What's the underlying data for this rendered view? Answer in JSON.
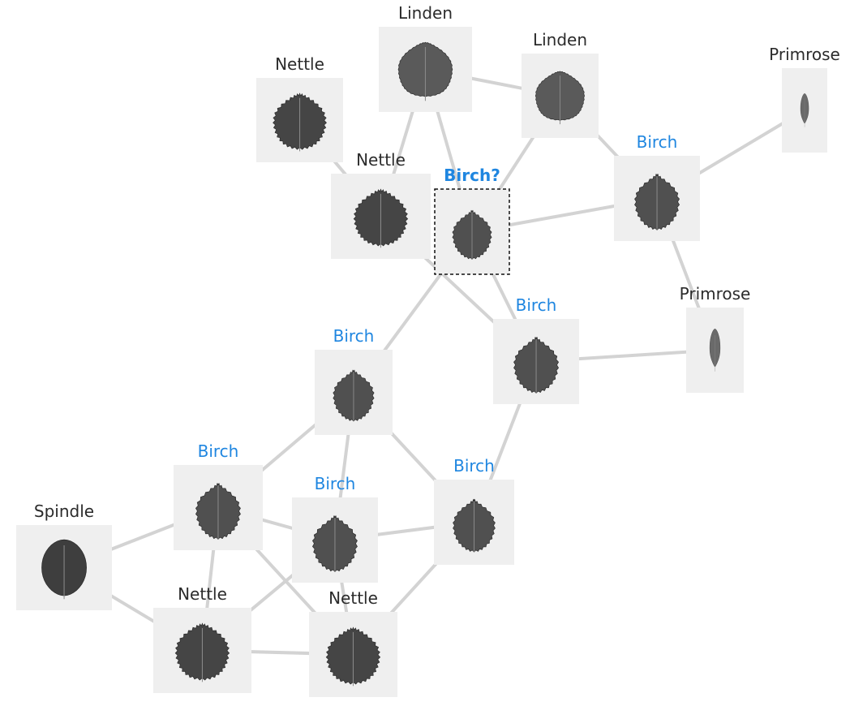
{
  "colors": {
    "edge": "#d3d3d3",
    "label_default": "#2b2b2b",
    "label_highlight": "#1f86e0",
    "tile_bg": "#efefef",
    "leaf_dark": "#4a4a4a",
    "leaf_light": "#9a9a9a",
    "query_border": "#111111"
  },
  "nodes": [
    {
      "id": "linden-top",
      "label": "Linden",
      "highlight": false,
      "query": false,
      "leaf": "linden"
    },
    {
      "id": "linden-right",
      "label": "Linden",
      "highlight": false,
      "query": false,
      "leaf": "linden"
    },
    {
      "id": "nettle-topleft",
      "label": "Nettle",
      "highlight": false,
      "query": false,
      "leaf": "nettle"
    },
    {
      "id": "nettle-center",
      "label": "Nettle",
      "highlight": false,
      "query": false,
      "leaf": "nettle"
    },
    {
      "id": "birch-query",
      "label": "Birch?",
      "highlight": true,
      "query": true,
      "leaf": "birch"
    },
    {
      "id": "birch-right",
      "label": "Birch",
      "highlight": true,
      "query": false,
      "leaf": "birch"
    },
    {
      "id": "primrose-top",
      "label": "Primrose",
      "highlight": false,
      "query": false,
      "leaf": "primrose"
    },
    {
      "id": "primrose-mid",
      "label": "Primrose",
      "highlight": false,
      "query": false,
      "leaf": "primrose"
    },
    {
      "id": "birch-mid",
      "label": "Birch",
      "highlight": true,
      "query": false,
      "leaf": "birch"
    },
    {
      "id": "birch-center",
      "label": "Birch",
      "highlight": true,
      "query": false,
      "leaf": "birch"
    },
    {
      "id": "birch-left",
      "label": "Birch",
      "highlight": true,
      "query": false,
      "leaf": "birch"
    },
    {
      "id": "birch-lowcenter",
      "label": "Birch",
      "highlight": true,
      "query": false,
      "leaf": "birch"
    },
    {
      "id": "birch-lowright",
      "label": "Birch",
      "highlight": true,
      "query": false,
      "leaf": "birch"
    },
    {
      "id": "spindle",
      "label": "Spindle",
      "highlight": false,
      "query": false,
      "leaf": "spindle"
    },
    {
      "id": "nettle-bottomleft",
      "label": "Nettle",
      "highlight": false,
      "query": false,
      "leaf": "nettle"
    },
    {
      "id": "nettle-bottom",
      "label": "Nettle",
      "highlight": false,
      "query": false,
      "leaf": "nettle"
    }
  ],
  "edges": [
    [
      "linden-top",
      "linden-right"
    ],
    [
      "linden-top",
      "nettle-center"
    ],
    [
      "linden-top",
      "birch-query"
    ],
    [
      "nettle-topleft",
      "nettle-center"
    ],
    [
      "linden-right",
      "birch-right"
    ],
    [
      "linden-right",
      "birch-query"
    ],
    [
      "birch-right",
      "primrose-top"
    ],
    [
      "birch-right",
      "birch-query"
    ],
    [
      "birch-right",
      "primrose-mid"
    ],
    [
      "nettle-center",
      "birch-mid"
    ],
    [
      "birch-query",
      "birch-mid"
    ],
    [
      "birch-query",
      "birch-center"
    ],
    [
      "birch-mid",
      "primrose-mid"
    ],
    [
      "birch-mid",
      "birch-lowright"
    ],
    [
      "birch-center",
      "birch-left"
    ],
    [
      "birch-center",
      "birch-lowcenter"
    ],
    [
      "birch-center",
      "birch-lowright"
    ],
    [
      "birch-left",
      "spindle"
    ],
    [
      "birch-left",
      "birch-lowcenter"
    ],
    [
      "birch-left",
      "nettle-bottomleft"
    ],
    [
      "birch-left",
      "nettle-bottom"
    ],
    [
      "birch-lowcenter",
      "birch-lowright"
    ],
    [
      "birch-lowcenter",
      "nettle-bottom"
    ],
    [
      "birch-lowcenter",
      "nettle-bottomleft"
    ],
    [
      "birch-lowright",
      "nettle-bottom"
    ],
    [
      "spindle",
      "nettle-bottomleft"
    ],
    [
      "nettle-bottomleft",
      "nettle-bottom"
    ]
  ]
}
